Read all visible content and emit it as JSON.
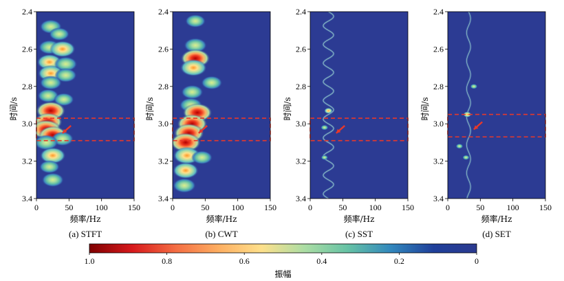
{
  "colorbar": {
    "label": "振幅",
    "ticks": [
      "1.0",
      "0.8",
      "0.6",
      "0.4",
      "0.2",
      "0"
    ],
    "stops": [
      "#7f0000",
      "#d7191c",
      "#f46d43",
      "#fdae61",
      "#fee08b",
      "#abdda4",
      "#66c2a5",
      "#3288bd",
      "#1f3f9a",
      "#2b3a8f"
    ]
  },
  "colors": {
    "background": "#2c3b93",
    "highlight_box": "#e8382a",
    "arrow": "#e8382a"
  },
  "chart_data": [
    {
      "type": "heatmap",
      "id": "stft",
      "caption": "(a) STFT",
      "xlabel": "频率/Hz",
      "ylabel": "时间/s",
      "xlim": [
        0,
        150
      ],
      "ylim": [
        2.4,
        3.4
      ],
      "y_inverted": true,
      "xticks": [
        "0",
        "50",
        "100",
        "150"
      ],
      "yticks": [
        "2.4",
        "2.6",
        "2.8",
        "3.0",
        "3.2",
        "3.4"
      ],
      "highlight": {
        "t": [
          2.97,
          3.09
        ],
        "f": [
          0,
          150
        ]
      },
      "blobs": [
        {
          "t": 2.48,
          "f": 22,
          "a": 0.55
        },
        {
          "t": 2.52,
          "f": 35,
          "a": 0.45
        },
        {
          "t": 2.59,
          "f": 20,
          "a": 0.55
        },
        {
          "t": 2.6,
          "f": 40,
          "a": 0.75
        },
        {
          "t": 2.67,
          "f": 20,
          "a": 0.7
        },
        {
          "t": 2.68,
          "f": 45,
          "a": 0.6
        },
        {
          "t": 2.73,
          "f": 22,
          "a": 0.75
        },
        {
          "t": 2.74,
          "f": 45,
          "a": 0.55
        },
        {
          "t": 2.78,
          "f": 22,
          "a": 0.55
        },
        {
          "t": 2.85,
          "f": 18,
          "a": 0.5
        },
        {
          "t": 2.87,
          "f": 42,
          "a": 0.45
        },
        {
          "t": 2.93,
          "f": 22,
          "a": 0.95
        },
        {
          "t": 2.99,
          "f": 18,
          "a": 0.9
        },
        {
          "t": 3.03,
          "f": 15,
          "a": 1.0
        },
        {
          "t": 3.06,
          "f": 25,
          "a": 0.9
        },
        {
          "t": 3.08,
          "f": 40,
          "a": 0.55
        },
        {
          "t": 3.1,
          "f": 15,
          "a": 0.65
        },
        {
          "t": 3.17,
          "f": 25,
          "a": 0.75
        },
        {
          "t": 3.23,
          "f": 20,
          "a": 0.45
        },
        {
          "t": 3.3,
          "f": 25,
          "a": 0.55
        }
      ]
    },
    {
      "type": "heatmap",
      "id": "cwt",
      "caption": "(b) CWT",
      "xlabel": "频率/Hz",
      "ylabel": "时间/s",
      "xlim": [
        0,
        150
      ],
      "ylim": [
        2.4,
        3.4
      ],
      "y_inverted": true,
      "xticks": [
        "0",
        "50",
        "100",
        "150"
      ],
      "yticks": [
        "2.4",
        "2.6",
        "2.8",
        "3.0",
        "3.2",
        "3.4"
      ],
      "highlight": {
        "t": [
          2.97,
          3.09
        ],
        "f": [
          0,
          150
        ]
      },
      "blobs": [
        {
          "t": 2.45,
          "f": 35,
          "a": 0.45
        },
        {
          "t": 2.58,
          "f": 35,
          "a": 0.6
        },
        {
          "t": 2.65,
          "f": 35,
          "a": 0.95
        },
        {
          "t": 2.7,
          "f": 32,
          "a": 0.8
        },
        {
          "t": 2.78,
          "f": 60,
          "a": 0.5
        },
        {
          "t": 2.83,
          "f": 30,
          "a": 0.55
        },
        {
          "t": 2.9,
          "f": 28,
          "a": 0.6
        },
        {
          "t": 2.94,
          "f": 38,
          "a": 0.95
        },
        {
          "t": 3.0,
          "f": 30,
          "a": 1.0
        },
        {
          "t": 3.05,
          "f": 25,
          "a": 1.0
        },
        {
          "t": 3.1,
          "f": 20,
          "a": 1.0
        },
        {
          "t": 3.17,
          "f": 22,
          "a": 0.85
        },
        {
          "t": 3.18,
          "f": 45,
          "a": 0.5
        },
        {
          "t": 3.25,
          "f": 20,
          "a": 0.75
        },
        {
          "t": 3.33,
          "f": 18,
          "a": 0.6
        }
      ]
    },
    {
      "type": "heatmap",
      "id": "sst",
      "caption": "(c) SST",
      "xlabel": "频率/Hz",
      "ylabel": "时间/s",
      "xlim": [
        0,
        150
      ],
      "ylim": [
        2.4,
        3.4
      ],
      "y_inverted": true,
      "xticks": [
        "0",
        "50",
        "100",
        "150"
      ],
      "yticks": [
        "2.4",
        "2.6",
        "2.8",
        "3.0",
        "3.2",
        "3.4"
      ],
      "highlight": {
        "t": [
          2.97,
          3.09
        ],
        "f": [
          0,
          150
        ]
      },
      "ridge": {
        "base": 28,
        "amp": 8,
        "period": 0.1,
        "a": 0.6
      },
      "blobs": [
        {
          "t": 2.93,
          "f": 28,
          "a": 0.75
        },
        {
          "t": 3.02,
          "f": 22,
          "a": 0.6
        },
        {
          "t": 3.18,
          "f": 22,
          "a": 0.5
        }
      ]
    },
    {
      "type": "heatmap",
      "id": "set",
      "caption": "(d) SET",
      "xlabel": "频率/Hz",
      "ylabel": "时间/s",
      "xlim": [
        0,
        150
      ],
      "ylim": [
        2.4,
        3.4
      ],
      "y_inverted": true,
      "xticks": [
        "0",
        "50",
        "100",
        "150"
      ],
      "yticks": [
        "2.4",
        "2.6",
        "2.8",
        "3.0",
        "3.2",
        "3.4"
      ],
      "highlight": {
        "t": [
          2.95,
          3.07
        ],
        "f": [
          0,
          150
        ]
      },
      "ridge": {
        "base": 32,
        "amp": 3,
        "period": 0.15,
        "a": 0.55
      },
      "blobs": [
        {
          "t": 2.8,
          "f": 40,
          "a": 0.55
        },
        {
          "t": 2.95,
          "f": 30,
          "a": 0.7
        },
        {
          "t": 3.12,
          "f": 18,
          "a": 0.55
        },
        {
          "t": 3.18,
          "f": 28,
          "a": 0.5
        }
      ]
    }
  ]
}
